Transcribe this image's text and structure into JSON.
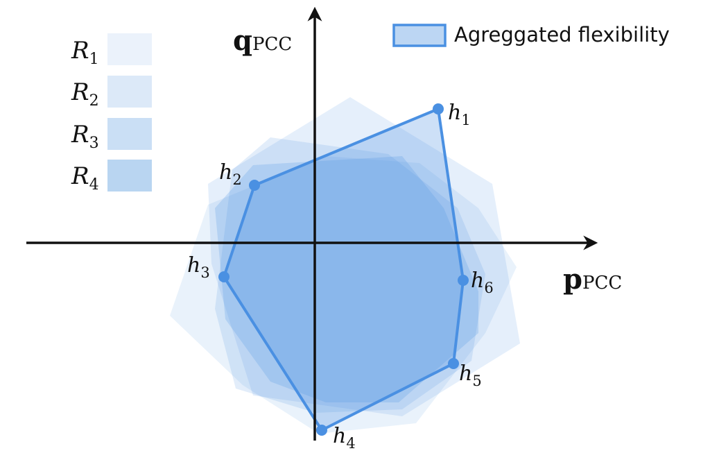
{
  "legend": {
    "items": [
      {
        "symbol": "R",
        "sub": "1",
        "color": "#ebf2fb"
      },
      {
        "symbol": "R",
        "sub": "2",
        "color": "#dce9f8"
      },
      {
        "symbol": "R",
        "sub": "3",
        "color": "#cadff5"
      },
      {
        "symbol": "R",
        "sub": "4",
        "color": "#b9d5f1"
      }
    ],
    "aggregated_label": "Agreggated flexibility",
    "aggregated_fill": "#bcd6f3",
    "aggregated_stroke": "#4a90e2"
  },
  "axes": {
    "x_bold": "p",
    "x_sub": "PCC",
    "y_bold": "q",
    "y_sub": "PCC"
  },
  "points": [
    {
      "sym": "h",
      "sub": "1"
    },
    {
      "sym": "h",
      "sub": "2"
    },
    {
      "sym": "h",
      "sub": "3"
    },
    {
      "sym": "h",
      "sub": "4"
    },
    {
      "sym": "h",
      "sub": "5"
    },
    {
      "sym": "h",
      "sub": "6"
    }
  ],
  "colors": {
    "region_fill": "#4a90e2",
    "outline": "#4a90e2",
    "axis": "#111111"
  }
}
